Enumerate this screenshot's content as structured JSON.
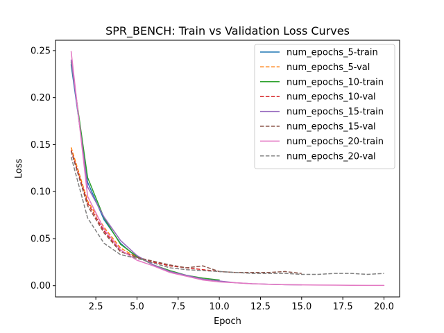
{
  "chart_data": {
    "type": "line",
    "title": "SPR_BENCH: Train vs Validation Loss Curves",
    "xlabel": "Epoch",
    "ylabel": "Loss",
    "xlim": [
      0.05,
      20.95
    ],
    "ylim": [
      -0.012,
      0.261
    ],
    "xticks": [
      2.5,
      5.0,
      7.5,
      10.0,
      12.5,
      15.0,
      17.5,
      20.0
    ],
    "xtick_labels": [
      "2.5",
      "5.0",
      "7.5",
      "10.0",
      "12.5",
      "15.0",
      "17.5",
      "20.0"
    ],
    "yticks": [
      0.0,
      0.05,
      0.1,
      0.15,
      0.2,
      0.25
    ],
    "ytick_labels": [
      "0.00",
      "0.05",
      "0.10",
      "0.15",
      "0.20",
      "0.25"
    ],
    "grid": false,
    "legend": "top-right",
    "series": [
      {
        "name": "num_epochs_5-train",
        "color": "#1f77b4",
        "dash": false,
        "x": [
          1,
          2,
          3,
          4,
          5
        ],
        "y": [
          0.235,
          0.11,
          0.07,
          0.045,
          0.03
        ]
      },
      {
        "name": "num_epochs_5-val",
        "color": "#ff7f0e",
        "dash": true,
        "x": [
          1,
          2,
          3,
          4,
          5
        ],
        "y": [
          0.147,
          0.09,
          0.062,
          0.04,
          0.03
        ]
      },
      {
        "name": "num_epochs_10-train",
        "color": "#2ca02c",
        "dash": false,
        "x": [
          1,
          2,
          3,
          4,
          5,
          6,
          7,
          8,
          9,
          10
        ],
        "y": [
          0.238,
          0.115,
          0.072,
          0.044,
          0.031,
          0.022,
          0.016,
          0.011,
          0.008,
          0.006
        ]
      },
      {
        "name": "num_epochs_10-val",
        "color": "#d62728",
        "dash": true,
        "x": [
          1,
          2,
          3,
          4,
          5,
          6,
          7,
          8,
          9,
          10
        ],
        "y": [
          0.144,
          0.088,
          0.058,
          0.037,
          0.03,
          0.025,
          0.021,
          0.019,
          0.017,
          0.015
        ]
      },
      {
        "name": "num_epochs_15-train",
        "color": "#9467bd",
        "dash": false,
        "x": [
          1,
          2,
          3,
          4,
          5,
          6,
          7,
          8,
          9,
          10,
          11,
          12,
          13,
          14,
          15
        ],
        "y": [
          0.24,
          0.105,
          0.073,
          0.048,
          0.032,
          0.022,
          0.015,
          0.011,
          0.007,
          0.005,
          0.003,
          0.002,
          0.0015,
          0.001,
          0.0008
        ]
      },
      {
        "name": "num_epochs_15-val",
        "color": "#8c564b",
        "dash": true,
        "x": [
          1,
          2,
          3,
          4,
          5,
          6,
          7,
          8,
          9,
          10,
          11,
          12,
          13,
          14,
          15
        ],
        "y": [
          0.143,
          0.085,
          0.056,
          0.036,
          0.03,
          0.026,
          0.022,
          0.019,
          0.021,
          0.015,
          0.014,
          0.014,
          0.014,
          0.015,
          0.013
        ]
      },
      {
        "name": "num_epochs_20-train",
        "color": "#e377c2",
        "dash": false,
        "x": [
          1,
          2,
          3,
          4,
          5,
          6,
          7,
          8,
          9,
          10,
          11,
          12,
          13,
          14,
          15,
          16,
          17,
          18,
          19,
          20
        ],
        "y": [
          0.249,
          0.095,
          0.06,
          0.038,
          0.027,
          0.021,
          0.014,
          0.01,
          0.006,
          0.004,
          0.003,
          0.002,
          0.0015,
          0.001,
          0.0008,
          0.0006,
          0.0005,
          0.0004,
          0.0003,
          0.0003
        ]
      },
      {
        "name": "num_epochs_20-val",
        "color": "#7f7f7f",
        "dash": true,
        "x": [
          1,
          2,
          3,
          4,
          5,
          6,
          7,
          8,
          9,
          10,
          11,
          12,
          13,
          14,
          15,
          16,
          17,
          18,
          19,
          20
        ],
        "y": [
          0.137,
          0.072,
          0.045,
          0.033,
          0.029,
          0.024,
          0.019,
          0.017,
          0.016,
          0.015,
          0.014,
          0.013,
          0.013,
          0.013,
          0.012,
          0.012,
          0.013,
          0.013,
          0.012,
          0.013
        ]
      }
    ]
  }
}
